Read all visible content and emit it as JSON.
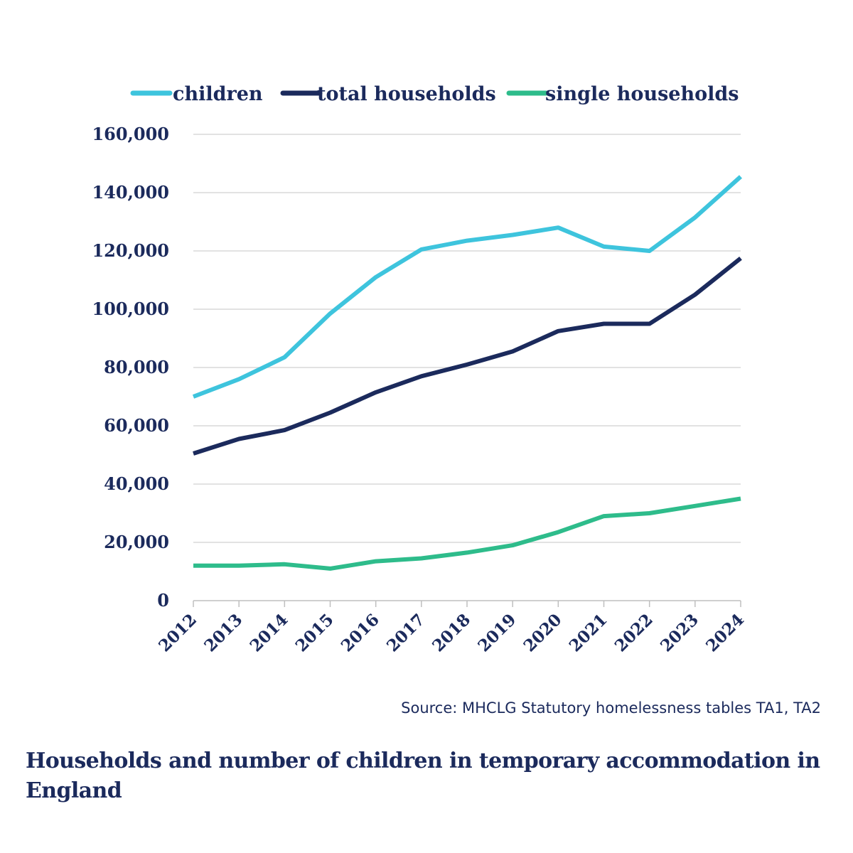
{
  "colors": {
    "children": "#3ec4dd",
    "total_households": "#1b2a5c",
    "single_households": "#2ebc8b",
    "text": "#1b2a5c",
    "grid": "#d9d9d9",
    "axis": "#bfbfbf"
  },
  "source": "Source: MHCLG Statutory homelessness tables TA1, TA2",
  "chart_data": {
    "type": "line",
    "title": "Households and number of children in temporary accommodation in England",
    "xlabel": "",
    "ylabel": "",
    "x": [
      "2012",
      "2013",
      "2014",
      "2015",
      "2016",
      "2017",
      "2018",
      "2019",
      "2020",
      "2021",
      "2022",
      "2023",
      "2024"
    ],
    "y_ticks": [
      "0",
      "20,000",
      "40,000",
      "60,000",
      "80,000",
      "100,000",
      "120,000",
      "140,000",
      "160,000"
    ],
    "ylim": [
      0,
      160000
    ],
    "grid": true,
    "legend_position": "top",
    "series": [
      {
        "name": "children",
        "values": [
          70000,
          76000,
          83500,
          98500,
          111000,
          120500,
          123500,
          125500,
          128000,
          121500,
          120000,
          131500,
          145500
        ]
      },
      {
        "name": "total households",
        "values": [
          50500,
          55500,
          58500,
          64500,
          71500,
          77000,
          81000,
          85500,
          92500,
          95000,
          95000,
          105000,
          117500
        ]
      },
      {
        "name": "single households",
        "values": [
          12000,
          12000,
          12500,
          11000,
          13500,
          14500,
          16500,
          19000,
          23500,
          29000,
          30000,
          32500,
          35000
        ]
      }
    ]
  }
}
